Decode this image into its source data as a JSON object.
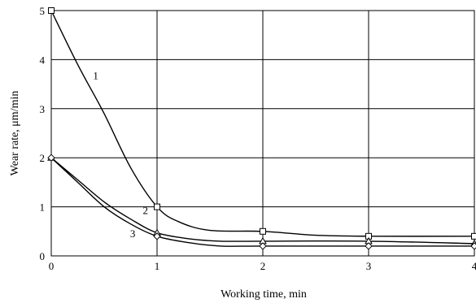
{
  "chart_data": {
    "type": "line",
    "xlabel": "Working time,  min",
    "ylabel": "Wear rate,  μm/min",
    "xlim": [
      0,
      4
    ],
    "ylim": [
      0,
      5
    ],
    "x_ticks": [
      "0",
      "1",
      "2",
      "3",
      "4"
    ],
    "y_ticks": [
      "0",
      "1",
      "2",
      "3",
      "4",
      "5"
    ],
    "grid": true,
    "series": [
      {
        "name": "1",
        "marker": "square",
        "points": [
          [
            0,
            5.0
          ],
          [
            1,
            1.0
          ],
          [
            2,
            0.5
          ],
          [
            3,
            0.4
          ],
          [
            4,
            0.4
          ]
        ],
        "curve": [
          [
            0,
            5.0
          ],
          [
            0.25,
            3.9
          ],
          [
            0.5,
            2.9
          ],
          [
            0.75,
            1.8
          ],
          [
            1,
            1.0
          ],
          [
            1.2,
            0.7
          ],
          [
            1.5,
            0.52
          ],
          [
            2,
            0.5
          ],
          [
            2.5,
            0.42
          ],
          [
            3,
            0.4
          ],
          [
            4,
            0.4
          ]
        ]
      },
      {
        "name": "2",
        "marker": "triangle",
        "points": [
          [
            0,
            2.0
          ],
          [
            1,
            0.47
          ],
          [
            2,
            0.3
          ],
          [
            3,
            0.3
          ],
          [
            4,
            0.25
          ]
        ],
        "curve": [
          [
            0,
            2.0
          ],
          [
            0.25,
            1.55
          ],
          [
            0.5,
            1.1
          ],
          [
            0.75,
            0.75
          ],
          [
            1,
            0.47
          ],
          [
            1.3,
            0.35
          ],
          [
            1.6,
            0.3
          ],
          [
            2,
            0.3
          ],
          [
            3,
            0.3
          ],
          [
            4,
            0.25
          ]
        ]
      },
      {
        "name": "3",
        "marker": "diamond",
        "points": [
          [
            0,
            2.0
          ],
          [
            1,
            0.4
          ],
          [
            2,
            0.2
          ],
          [
            3,
            0.2
          ],
          [
            4,
            0.2
          ]
        ],
        "curve": [
          [
            0,
            2.0
          ],
          [
            0.25,
            1.5
          ],
          [
            0.5,
            1.0
          ],
          [
            0.75,
            0.65
          ],
          [
            1,
            0.4
          ],
          [
            1.3,
            0.27
          ],
          [
            1.6,
            0.2
          ],
          [
            2,
            0.2
          ],
          [
            3,
            0.2
          ],
          [
            4,
            0.2
          ]
        ]
      }
    ],
    "annotations": [
      {
        "text": "1",
        "x": 0.42,
        "y": 3.6
      },
      {
        "text": "2",
        "x": 0.89,
        "y": 0.85
      },
      {
        "text": "3",
        "x": 0.77,
        "y": 0.38
      }
    ]
  }
}
